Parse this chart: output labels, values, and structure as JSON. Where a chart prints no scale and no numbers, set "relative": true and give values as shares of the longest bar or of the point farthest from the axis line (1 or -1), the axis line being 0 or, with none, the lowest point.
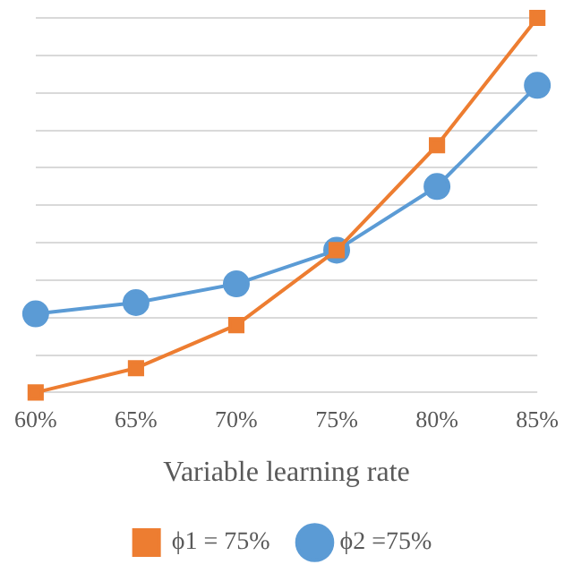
{
  "chart_data": {
    "type": "line",
    "relative": true,
    "xlabel": "Variable learning rate",
    "categories": [
      "60%",
      "65%",
      "70%",
      "75%",
      "80%",
      "85%"
    ],
    "series": [
      {
        "name": "ϕ1 = 75%",
        "color": "#ed7d31",
        "marker": "square",
        "values": [
          0,
          0.065,
          0.18,
          0.38,
          0.66,
          1
        ]
      },
      {
        "name": "ϕ2 =75%",
        "color": "#5b9bd5",
        "marker": "circle",
        "values": [
          0.21,
          0.24,
          0.29,
          0.38,
          0.55,
          0.82
        ]
      }
    ],
    "grid": "y",
    "legend": "bottom",
    "line_style": "solid"
  }
}
